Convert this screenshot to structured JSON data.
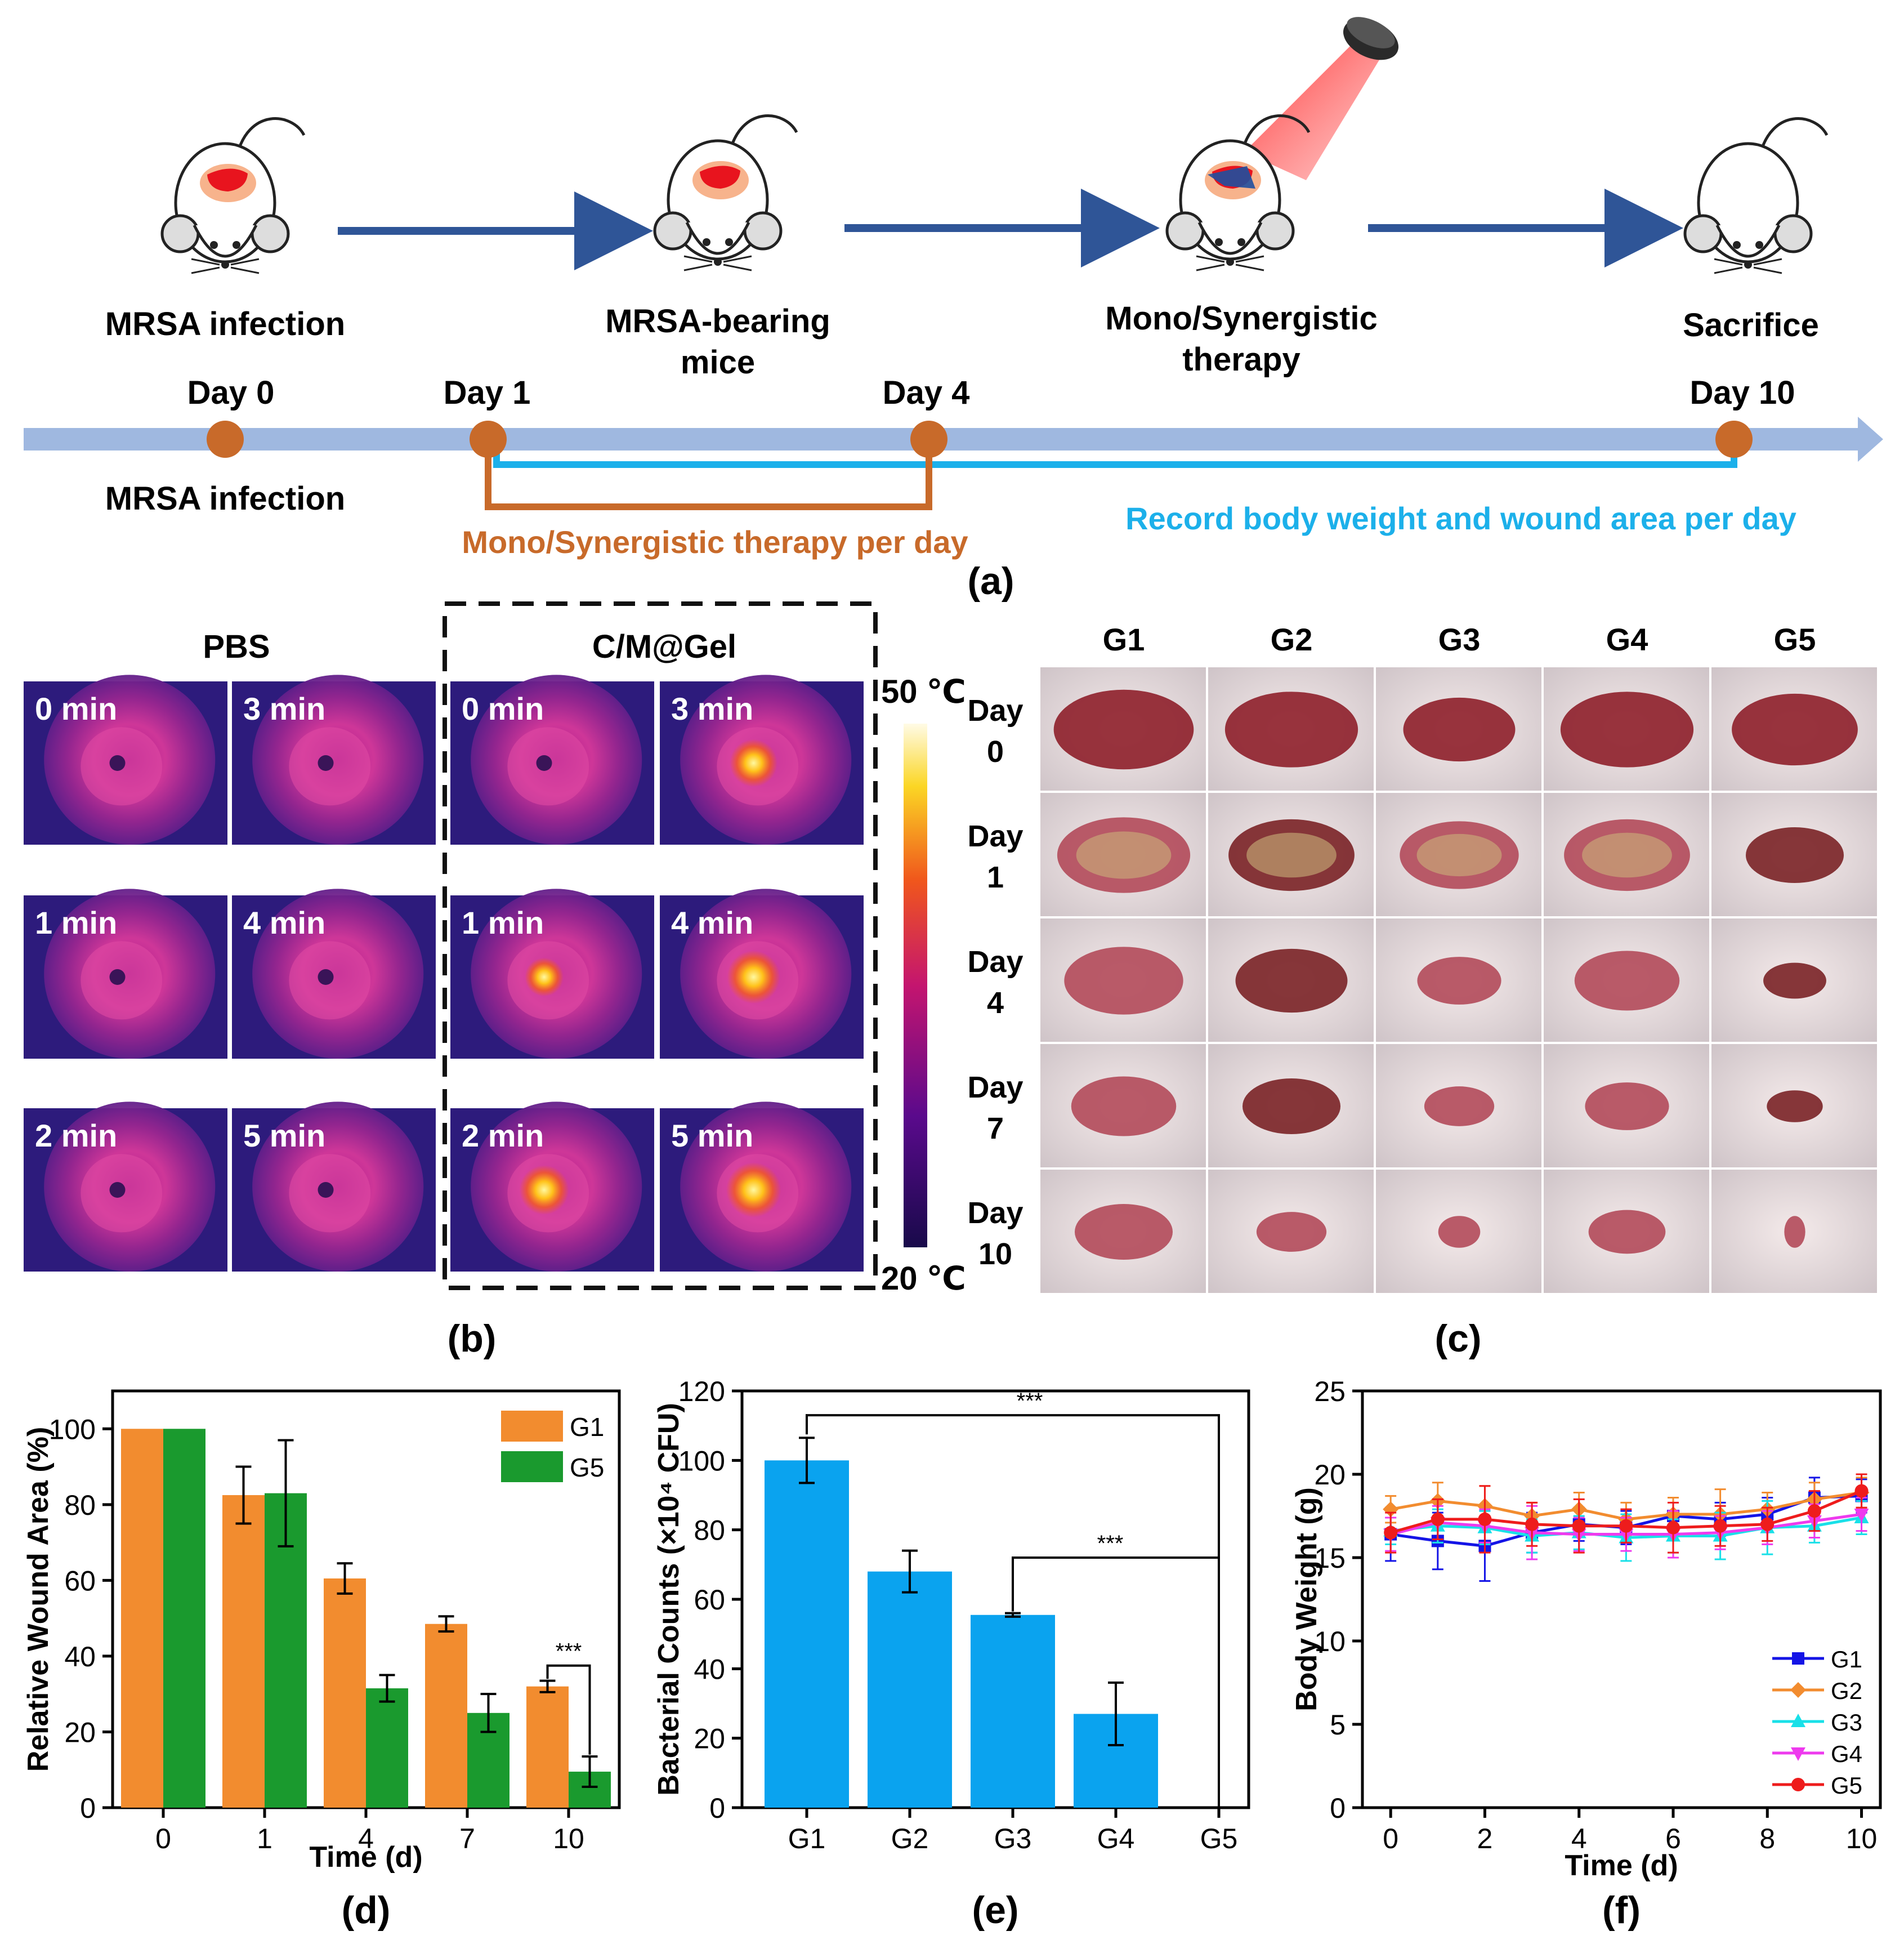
{
  "panel_a": {
    "label": "(a)",
    "stages": [
      {
        "caption": "MRSA infection"
      },
      {
        "caption": "MRSA-bearing",
        "caption2": "mice"
      },
      {
        "caption": "Mono/Synergistic",
        "caption2": "therapy"
      },
      {
        "caption": "Sacrifice"
      }
    ],
    "timeline": {
      "day0": "Day 0",
      "day1": "Day 1",
      "day4": "Day 4",
      "day10": "Day 10",
      "below_day0": "MRSA infection",
      "therapy_note": "Mono/Synergistic therapy per day",
      "record_note": "Record body weight and wound area per day"
    },
    "colors": {
      "timeline": "#9fb8e0",
      "dot": "#c86a2a",
      "therapy": "#c86a2a",
      "record": "#1cb0ea",
      "arrow": "#2f5597"
    }
  },
  "panel_b": {
    "label": "(b)",
    "pbs_title": "PBS",
    "gel_title": "C/M@Gel",
    "pbs_times": [
      "0 min",
      "3 min",
      "1 min",
      "4 min",
      "2 min",
      "5 min"
    ],
    "gel_times": [
      "0 min",
      "3 min",
      "1 min",
      "4 min",
      "2 min",
      "5 min"
    ],
    "gel_hotspot": [
      0.0,
      0.7,
      0.45,
      0.85,
      0.75,
      0.9
    ],
    "colorbar": {
      "max_label": "50 ℃",
      "min_label": "20 ℃"
    }
  },
  "panel_c": {
    "label": "(c)",
    "groups": [
      "G1",
      "G2",
      "G3",
      "G4",
      "G5"
    ],
    "days": [
      {
        "word": "Day",
        "num": "0"
      },
      {
        "word": "Day",
        "num": "1"
      },
      {
        "word": "Day",
        "num": "4"
      },
      {
        "word": "Day",
        "num": "7"
      },
      {
        "word": "Day",
        "num": "10"
      }
    ],
    "wound_scale": [
      [
        1.0,
        0.95,
        0.8,
        0.95,
        0.9
      ],
      [
        0.95,
        0.9,
        0.85,
        0.9,
        0.7
      ],
      [
        0.85,
        0.8,
        0.6,
        0.75,
        0.45
      ],
      [
        0.75,
        0.7,
        0.5,
        0.6,
        0.4
      ],
      [
        0.7,
        0.5,
        0.3,
        0.55,
        0.15
      ]
    ]
  },
  "chart_data": [
    {
      "id": "d",
      "label": "(d)",
      "type": "bar",
      "ylabel": "Relative Wound Area (%)",
      "xlabel": "Time (d)",
      "categories": [
        "0",
        "1",
        "4",
        "7",
        "10"
      ],
      "ylim": [
        0,
        110
      ],
      "yticks": [
        "0",
        "20",
        "40",
        "60",
        "80",
        "100"
      ],
      "series": [
        {
          "name": "G1",
          "color": "#f28c2f",
          "values": [
            100,
            82.5,
            60.5,
            48.5,
            32
          ],
          "err": [
            0,
            7.5,
            4,
            2,
            1.5
          ]
        },
        {
          "name": "G5",
          "color": "#1a9a2e",
          "values": [
            100,
            83,
            31.5,
            25,
            9.5
          ],
          "err": [
            0,
            14,
            3.5,
            5,
            4
          ]
        }
      ],
      "significance": "***"
    },
    {
      "id": "e",
      "label": "(e)",
      "type": "bar",
      "ylabel": "Bacterial Counts (×10⁴ CFU)",
      "xlabel": "",
      "categories": [
        "G1",
        "G2",
        "G3",
        "G4",
        "G5"
      ],
      "ylim": [
        0,
        120
      ],
      "yticks": [
        "0",
        "20",
        "40",
        "60",
        "80",
        "100",
        "120"
      ],
      "series": [
        {
          "name": "Bacterial Counts",
          "color": "#0aa3ef",
          "values": [
            100,
            68,
            55.5,
            27,
            0
          ],
          "err": [
            6.5,
            6,
            0.5,
            9,
            0
          ]
        }
      ],
      "significance": [
        "***",
        "***"
      ]
    },
    {
      "id": "f",
      "label": "(f)",
      "type": "line",
      "ylabel": "Body Weight (g)",
      "xlabel": "Time (d)",
      "x": [
        0,
        1,
        2,
        3,
        4,
        5,
        6,
        7,
        8,
        9,
        10
      ],
      "xticks": [
        "0",
        "2",
        "4",
        "6",
        "8",
        "10"
      ],
      "ylim": [
        0,
        25
      ],
      "yticks": [
        "0",
        "5",
        "10",
        "15",
        "20",
        "25"
      ],
      "series": [
        {
          "name": "G1",
          "color": "#1414e6",
          "marker": "square",
          "values": [
            16.4,
            16.0,
            15.7,
            16.5,
            17.0,
            16.8,
            17.5,
            17.3,
            17.6,
            18.6,
            18.7
          ],
          "err": [
            1.6,
            1.7,
            2.1,
            1.2,
            1.0,
            1.0,
            1.1,
            1.0,
            1.0,
            1.2,
            1.0
          ]
        },
        {
          "name": "G2",
          "color": "#f28c2f",
          "marker": "diamond",
          "values": [
            17.9,
            18.4,
            18.1,
            17.5,
            17.9,
            17.3,
            17.6,
            17.6,
            17.9,
            18.5,
            18.9
          ],
          "err": [
            0.8,
            1.1,
            1.2,
            0.8,
            1.0,
            1.0,
            1.0,
            1.5,
            1.0,
            1.0,
            0.9
          ]
        },
        {
          "name": "G3",
          "color": "#19e0e8",
          "marker": "triangle-up",
          "values": [
            16.6,
            16.9,
            16.8,
            16.3,
            16.5,
            16.2,
            16.3,
            16.3,
            16.8,
            16.9,
            17.4
          ],
          "err": [
            0.8,
            1.0,
            1.0,
            1.0,
            1.0,
            1.4,
            1.0,
            1.4,
            1.6,
            1.0,
            1.0
          ]
        },
        {
          "name": "G4",
          "color": "#ee3aee",
          "marker": "triangle-down",
          "values": [
            16.4,
            17.1,
            16.9,
            16.5,
            16.4,
            16.4,
            16.4,
            16.5,
            16.8,
            17.2,
            17.6
          ],
          "err": [
            1.0,
            1.0,
            1.0,
            1.6,
            1.0,
            1.0,
            1.4,
            1.0,
            1.0,
            1.0,
            1.0
          ]
        },
        {
          "name": "G5",
          "color": "#ee1c1c",
          "marker": "circle",
          "values": [
            16.5,
            17.3,
            17.3,
            17.0,
            16.9,
            16.9,
            16.8,
            16.9,
            17.0,
            17.8,
            19.0
          ],
          "err": [
            1.2,
            1.2,
            2.0,
            1.3,
            1.6,
            1.0,
            1.5,
            1.2,
            1.0,
            1.2,
            1.0
          ]
        }
      ]
    }
  ]
}
